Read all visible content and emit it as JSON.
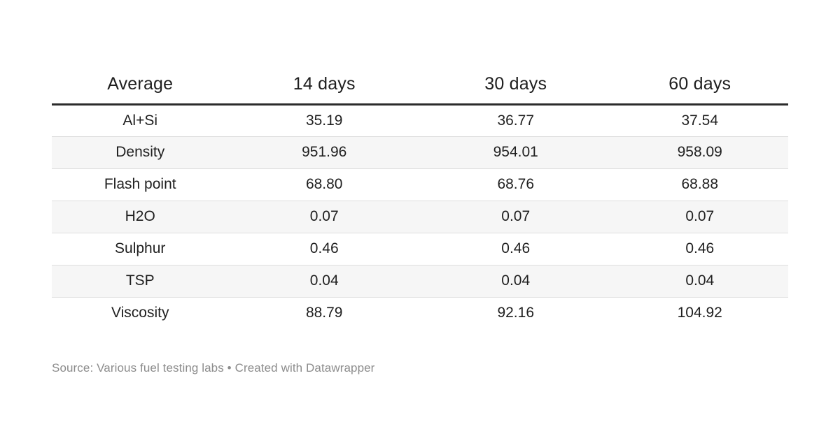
{
  "colors": {
    "text": "#1f1f1f",
    "header_border": "#2b2b2b",
    "row_separator": "#dedede",
    "stripe_bg": "#f6f6f6",
    "footer_text": "#8c8c8c",
    "page_bg": "#ffffff"
  },
  "table": {
    "header": [
      "Average",
      "14 days",
      "30 days",
      "60 days"
    ],
    "rows": [
      {
        "label": "Al+Si",
        "values": [
          "35.19",
          "36.77",
          "37.54"
        ]
      },
      {
        "label": "Density",
        "values": [
          "951.96",
          "954.01",
          "958.09"
        ]
      },
      {
        "label": "Flash point",
        "values": [
          "68.80",
          "68.76",
          "68.88"
        ]
      },
      {
        "label": "H2O",
        "values": [
          "0.07",
          "0.07",
          "0.07"
        ]
      },
      {
        "label": "Sulphur",
        "values": [
          "0.46",
          "0.46",
          "0.46"
        ]
      },
      {
        "label": "TSP",
        "values": [
          "0.04",
          "0.04",
          "0.04"
        ]
      },
      {
        "label": "Viscosity",
        "values": [
          "88.79",
          "92.16",
          "104.92"
        ]
      }
    ]
  },
  "footer": {
    "source": "Source: Various fuel testing labs",
    "separator": "•",
    "attribution": "Created with Datawrapper"
  },
  "chart_data": {
    "type": "table",
    "columns": [
      "Average",
      "14 days",
      "30 days",
      "60 days"
    ],
    "rows": [
      [
        "Al+Si",
        35.19,
        36.77,
        37.54
      ],
      [
        "Density",
        951.96,
        954.01,
        958.09
      ],
      [
        "Flash point",
        68.8,
        68.76,
        68.88
      ],
      [
        "H2O",
        0.07,
        0.07,
        0.07
      ],
      [
        "Sulphur",
        0.46,
        0.46,
        0.46
      ],
      [
        "TSP",
        0.04,
        0.04,
        0.04
      ],
      [
        "Viscosity",
        88.79,
        92.16,
        104.92
      ]
    ],
    "title": "",
    "source": "Various fuel testing labs",
    "attribution": "Created with Datawrapper",
    "layout_hints": {
      "striped_rows": true,
      "header_rule": "thick",
      "cell_alignment": "center",
      "grid": "horizontal-only"
    }
  }
}
